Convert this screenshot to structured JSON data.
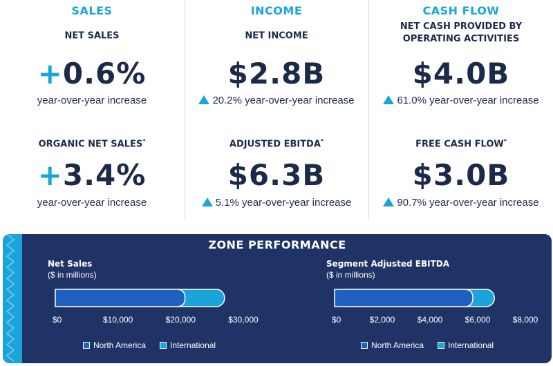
{
  "columns": [
    {
      "heading": "SALES",
      "items": [
        {
          "label": "NET SALES",
          "mark": "",
          "prefix": "+",
          "value": "0.6%",
          "desc": "year-over-year increase",
          "up_arrow": false
        },
        {
          "label": "ORGANIC NET SALES",
          "mark": "*",
          "prefix": "+",
          "value": "3.4%",
          "desc": "year-over-year increase",
          "up_arrow": false
        }
      ]
    },
    {
      "heading": "INCOME",
      "items": [
        {
          "label": "NET INCOME",
          "mark": "",
          "prefix": "",
          "value": "$2.8B",
          "desc": "20.2% year-over-year increase",
          "up_arrow": true
        },
        {
          "label": "ADJUSTED EBITDA",
          "mark": "*",
          "prefix": "",
          "value": "$6.3B",
          "desc": "5.1% year-over-year increase",
          "up_arrow": true
        }
      ]
    },
    {
      "heading": "CASH FLOW",
      "items": [
        {
          "label": "NET CASH PROVIDED BY",
          "label2": "OPERATING ACTIVITIES",
          "mark": "",
          "prefix": "",
          "value": "$4.0B",
          "desc": "61.0% year-over-year increase",
          "up_arrow": true
        },
        {
          "label": "FREE CASH FLOW",
          "mark": "*",
          "prefix": "",
          "value": "$3.0B",
          "desc": "90.7% year-over-year increase",
          "up_arrow": true
        }
      ]
    }
  ],
  "zone": {
    "title": "ZONE PERFORMANCE",
    "legend": [
      {
        "name": "North America",
        "color": "#1f5fbf"
      },
      {
        "name": "International",
        "color": "#1aa4d9"
      }
    ]
  },
  "chart_data": [
    {
      "type": "bar",
      "orientation": "horizontal",
      "stacked": true,
      "title": "Net Sales",
      "unit_label": "($ in millions)",
      "xlim": [
        0,
        30000
      ],
      "ticks": [
        "$0",
        "$10,000",
        "$20,000",
        "$30,000"
      ],
      "tick_values": [
        0,
        10000,
        20000,
        30000
      ],
      "series": [
        {
          "name": "North America",
          "values": [
            20700
          ],
          "color": "#1f5fbf"
        },
        {
          "name": "International",
          "values": [
            6300
          ],
          "color": "#1aa4d9"
        }
      ]
    },
    {
      "type": "bar",
      "orientation": "horizontal",
      "stacked": true,
      "title": "Segment Adjusted EBITDA",
      "unit_label": "($ in millions)",
      "xlim": [
        0,
        8000
      ],
      "ticks": [
        "$0",
        "$2,000",
        "$4,000",
        "$6,000",
        "$8,000"
      ],
      "tick_values": [
        0,
        2000,
        4000,
        6000,
        8000
      ],
      "series": [
        {
          "name": "North America",
          "values": [
            5800
          ],
          "color": "#1f5fbf"
        },
        {
          "name": "International",
          "values": [
            900
          ],
          "color": "#1aa4d9"
        }
      ]
    }
  ]
}
